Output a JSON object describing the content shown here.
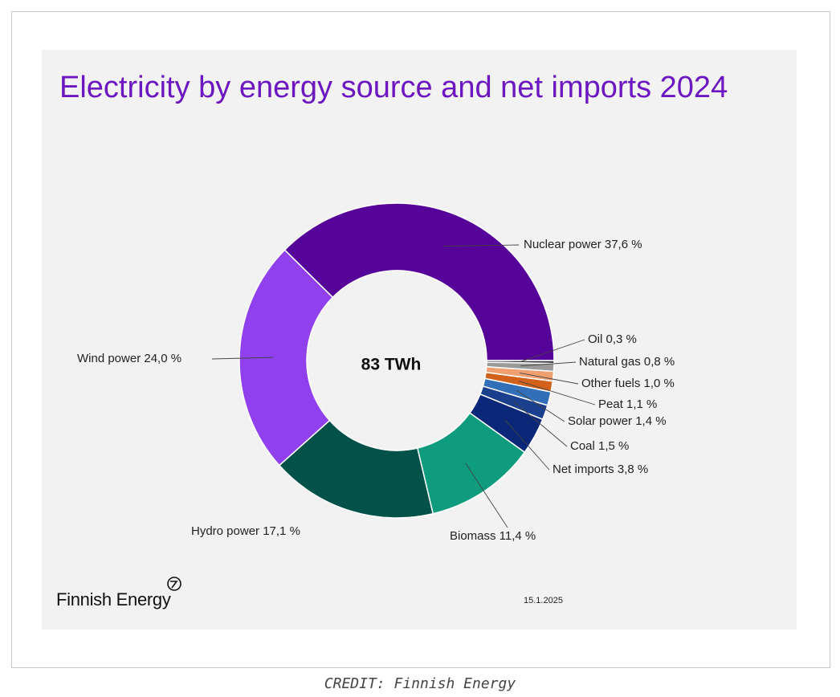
{
  "chart_data": {
    "type": "pie",
    "title": "Electricity by energy source and net imports 2024",
    "center_label": "83 TWh",
    "slices": [
      {
        "name": "Nuclear power",
        "value": 37.6,
        "label": "Nuclear power 37,6 %",
        "color": "#560399"
      },
      {
        "name": "Oil",
        "value": 0.3,
        "label": "Oil  0,3 %",
        "color": "#3b3b3b"
      },
      {
        "name": "Natural gas",
        "value": 0.8,
        "label": "Natural gas 0,8 %",
        "color": "#9a9a9a"
      },
      {
        "name": "Other fuels",
        "value": 1.0,
        "label": "Other fuels 1,0 %",
        "color": "#f0a070"
      },
      {
        "name": "Peat",
        "value": 1.1,
        "label": "Peat 1,1 %",
        "color": "#d2621b"
      },
      {
        "name": "Solar power",
        "value": 1.4,
        "label": "Solar power 1,4 %",
        "color": "#3170b8"
      },
      {
        "name": "Coal",
        "value": 1.5,
        "label": "Coal 1,5 %",
        "color": "#1a3f8c"
      },
      {
        "name": "Net imports",
        "value": 3.8,
        "label": "Net imports 3,8 %",
        "color": "#0b2878"
      },
      {
        "name": "Biomass",
        "value": 11.4,
        "label": "Biomass 11,4 %",
        "color": "#0f9c7e"
      },
      {
        "name": "Hydro power",
        "value": 17.1,
        "label": "Hydro power 17,1 %",
        "color": "#03524a"
      },
      {
        "name": "Wind power",
        "value": 24.0,
        "label": "Wind power 24,0 %",
        "color": "#9040ec"
      }
    ]
  },
  "footer": {
    "logo_text": "Finnish Energy",
    "date": "15.1.2025",
    "credit": "CREDIT: Finnish Energy"
  }
}
